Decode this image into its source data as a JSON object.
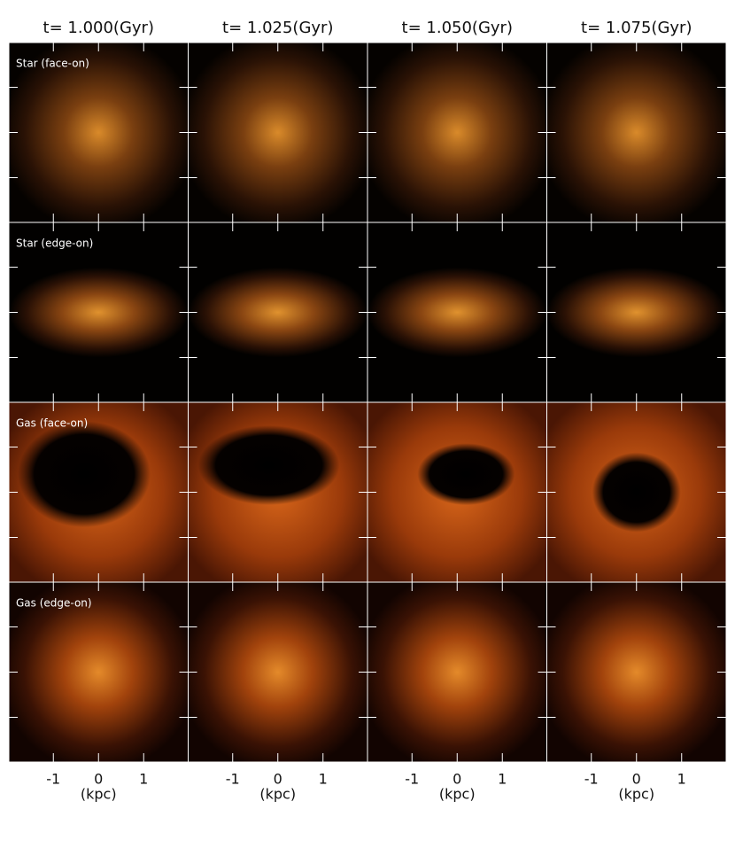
{
  "columns": [
    "t= 1.000(Gyr)",
    "t= 1.025(Gyr)",
    "t= 1.050(Gyr)",
    "t= 1.075(Gyr)"
  ],
  "rows": [
    "Star (face-on)",
    "Star (edge-on)",
    "Gas (face-on)",
    "Gas (edge-on)"
  ],
  "x_axis": {
    "ticks": [
      "-1",
      "0",
      "1"
    ],
    "label": "(kpc)"
  }
}
